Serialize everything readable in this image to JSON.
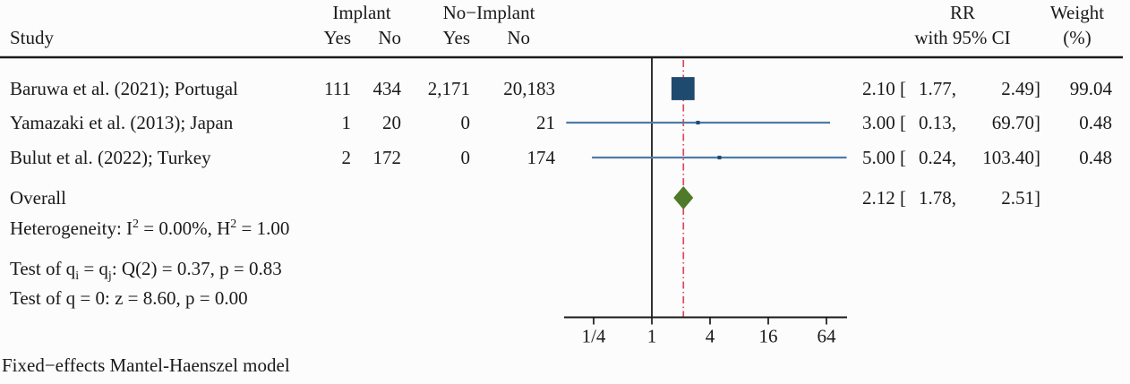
{
  "header": {
    "study": "Study",
    "implant_group": "Implant",
    "no_implant_group": "No−Implant",
    "implant_yes": "Yes",
    "implant_no": "No",
    "no_implant_yes": "Yes",
    "no_implant_no": "No",
    "rr_line1": "RR",
    "rr_line2": "with 95% CI",
    "weight_line1": "Weight",
    "weight_line2": "(%)"
  },
  "rows": [
    {
      "study": "Baruwa et al. (2021); Portugal",
      "implant_yes": "111",
      "implant_no": "434",
      "no_implant_yes": "2,171",
      "no_implant_no": "20,183",
      "rr_display": "2.10 [",
      "ci_low_display": "1.77,",
      "ci_high_display": "2.49]",
      "weight_display": "99.04"
    },
    {
      "study": "Yamazaki et al. (2013); Japan",
      "implant_yes": "1",
      "implant_no": "20",
      "no_implant_yes": "0",
      "no_implant_no": "21",
      "rr_display": "3.00 [",
      "ci_low_display": "0.13,",
      "ci_high_display": "69.70]",
      "weight_display": "0.48"
    },
    {
      "study": "Bulut et al. (2022); Turkey",
      "implant_yes": "2",
      "implant_no": "172",
      "no_implant_yes": "0",
      "no_implant_no": "174",
      "rr_display": "5.00 [",
      "ci_low_display": "0.24,",
      "ci_high_display": "103.40]",
      "weight_display": "0.48"
    }
  ],
  "overall": {
    "label": "Overall",
    "rr_display": "2.12 [",
    "ci_low_display": "1.78,",
    "ci_high_display": "2.51]"
  },
  "stats": {
    "het_p1": "Heterogeneity: I",
    "het_sup1": "2",
    "het_p2": " = 0.00%, H",
    "het_sup2": "2",
    "het_p3": " = 1.00",
    "q_p1": "Test of q",
    "q_sub1": "i",
    "q_p2": " = q",
    "q_sub2": "j",
    "q_p3": ": Q(2) = 0.37, p = 0.83",
    "z_line": "Test of q = 0: z = 8.60, p = 0.00"
  },
  "footer": "Fixed−effects Mantel-Haenszel model",
  "chart_data": {
    "type": "scatter",
    "variant": "forest-plot",
    "effect_measure": "RR",
    "x_axis": {
      "scale": "log",
      "log_base": 4,
      "ticks": [
        0.25,
        1,
        4,
        16,
        64
      ],
      "tick_labels": [
        "1/4",
        "1",
        "4",
        "16",
        "64"
      ]
    },
    "null_line": 1,
    "overall_line": 2.12,
    "studies": [
      {
        "label": "Baruwa et al. (2021); Portugal",
        "implant_yes": 111,
        "implant_no": 434,
        "no_implant_yes": 2171,
        "no_implant_no": 20183,
        "rr": 2.1,
        "ci_low": 1.77,
        "ci_high": 2.49,
        "weight_pct": 99.04
      },
      {
        "label": "Yamazaki et al. (2013); Japan",
        "implant_yes": 1,
        "implant_no": 20,
        "no_implant_yes": 0,
        "no_implant_no": 21,
        "rr": 3.0,
        "ci_low": 0.13,
        "ci_high": 69.7,
        "weight_pct": 0.48
      },
      {
        "label": "Bulut et al. (2022); Turkey",
        "implant_yes": 2,
        "implant_no": 172,
        "no_implant_yes": 0,
        "no_implant_no": 174,
        "rr": 5.0,
        "ci_low": 0.24,
        "ci_high": 103.4,
        "weight_pct": 0.48
      }
    ],
    "overall": {
      "rr": 2.12,
      "ci_low": 1.78,
      "ci_high": 2.51
    },
    "heterogeneity": {
      "I2_percent": 0.0,
      "H2": 1.0,
      "Q": 0.37,
      "Q_df": 2,
      "p_Q": 0.83,
      "z": 8.6,
      "p_z": 0.0
    },
    "model_note": "Fixed−effects Mantel-Haenszel model",
    "colors": {
      "marker": "#1f4a70",
      "ci_line": "#4d7ba7",
      "diamond": "#4f7a29",
      "overall_line": "#e0485e",
      "axis": "#1a1a1a"
    }
  }
}
